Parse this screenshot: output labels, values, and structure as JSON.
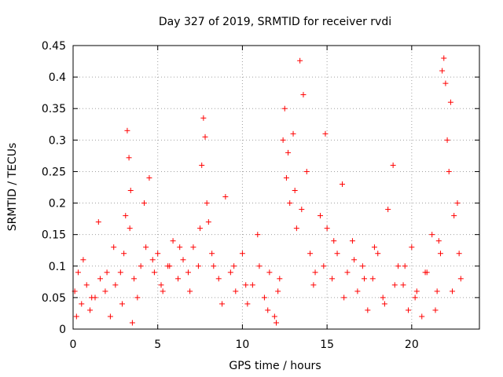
{
  "chart_data": {
    "type": "scatter",
    "title": "Day 327 of 2019, SRMTID for receiver rvdi",
    "xlabel": "GPS time / hours",
    "ylabel": "SRMTID / TECUs",
    "xlim": [
      0,
      24
    ],
    "ylim": [
      0,
      0.45
    ],
    "xticks": [
      "0",
      "5",
      "10",
      "15",
      "20"
    ],
    "yticks": [
      "0",
      "0.05",
      "0.1",
      "0.15",
      "0.2",
      "0.25",
      "0.3",
      "0.35",
      "0.4",
      "0.45"
    ],
    "grid": true,
    "marker": "+",
    "marker_color": "#ff0000",
    "series": [
      {
        "name": "",
        "x": [
          0.1,
          0.3,
          0.5,
          0.8,
          1.0,
          1.3,
          1.6,
          1.9,
          2.2,
          2.5,
          2.8,
          3.0,
          3.1,
          3.2,
          3.3,
          3.4,
          3.6,
          3.8,
          4.0,
          4.3,
          4.5,
          4.8,
          5.0,
          5.3,
          5.6,
          5.9,
          6.2,
          6.5,
          6.8,
          7.1,
          7.4,
          7.6,
          7.7,
          7.8,
          7.9,
          8.0,
          8.3,
          8.6,
          9.0,
          9.3,
          9.6,
          10.0,
          10.3,
          10.6,
          11.0,
          11.3,
          11.6,
          11.9,
          12.0,
          12.2,
          12.4,
          12.5,
          12.6,
          12.8,
          13.0,
          13.2,
          13.4,
          13.6,
          13.8,
          14.0,
          14.3,
          14.6,
          14.9,
          15.0,
          15.3,
          15.6,
          15.9,
          16.2,
          16.5,
          16.8,
          17.1,
          17.4,
          17.7,
          18.0,
          18.3,
          18.6,
          18.9,
          19.2,
          19.5,
          19.8,
          20.0,
          20.3,
          20.6,
          20.9,
          21.2,
          21.5,
          21.7,
          21.8,
          21.9,
          22.0,
          22.1,
          22.2,
          22.3,
          22.5,
          22.7,
          22.9,
          0.2,
          0.6,
          1.1,
          1.5,
          2.0,
          2.4,
          2.9,
          3.35,
          3.5,
          4.2,
          4.7,
          5.2,
          5.7,
          6.3,
          6.9,
          7.5,
          8.2,
          8.8,
          9.5,
          10.2,
          10.9,
          11.5,
          12.1,
          12.7,
          13.1,
          13.5,
          14.2,
          14.8,
          15.4,
          16.0,
          16.6,
          17.2,
          17.8,
          18.4,
          19.0,
          19.6,
          20.2,
          20.8,
          21.4,
          21.6,
          22.4,
          22.8
        ],
        "y": [
          0.06,
          0.09,
          0.04,
          0.07,
          0.03,
          0.05,
          0.08,
          0.06,
          0.02,
          0.07,
          0.09,
          0.12,
          0.18,
          0.315,
          0.272,
          0.22,
          0.08,
          0.05,
          0.1,
          0.13,
          0.24,
          0.09,
          0.12,
          0.06,
          0.1,
          0.14,
          0.08,
          0.11,
          0.09,
          0.13,
          0.1,
          0.26,
          0.335,
          0.305,
          0.2,
          0.17,
          0.1,
          0.08,
          0.21,
          0.09,
          0.06,
          0.12,
          0.04,
          0.07,
          0.1,
          0.05,
          0.09,
          0.02,
          0.01,
          0.08,
          0.3,
          0.35,
          0.24,
          0.2,
          0.31,
          0.16,
          0.426,
          0.372,
          0.25,
          0.12,
          0.09,
          0.18,
          0.31,
          0.16,
          0.08,
          0.12,
          0.23,
          0.09,
          0.14,
          0.06,
          0.1,
          0.03,
          0.08,
          0.12,
          0.05,
          0.19,
          0.26,
          0.1,
          0.07,
          0.03,
          0.13,
          0.06,
          0.02,
          0.09,
          0.15,
          0.06,
          0.12,
          0.41,
          0.43,
          0.39,
          0.3,
          0.25,
          0.36,
          0.18,
          0.2,
          0.08,
          0.02,
          0.11,
          0.05,
          0.17,
          0.09,
          0.13,
          0.04,
          0.16,
          0.01,
          0.2,
          0.11,
          0.07,
          0.1,
          0.13,
          0.06,
          0.16,
          0.12,
          0.04,
          0.1,
          0.07,
          0.15,
          0.03,
          0.06,
          0.28,
          0.22,
          0.19,
          0.07,
          0.1,
          0.14,
          0.05,
          0.11,
          0.08,
          0.13,
          0.04,
          0.07,
          0.1,
          0.05,
          0.09,
          0.03,
          0.14,
          0.06,
          0.12
        ]
      }
    ]
  }
}
